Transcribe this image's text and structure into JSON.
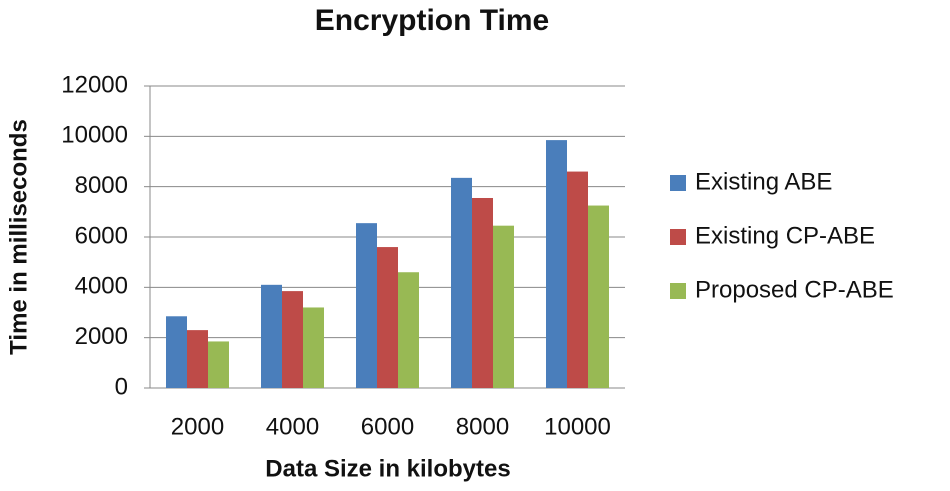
{
  "chart_data": {
    "type": "bar",
    "title": "Encryption Time",
    "x_label": "Data Size in kilobytes",
    "y_label": "Time in milliseconds",
    "categories": [
      "2000",
      "4000",
      "6000",
      "8000",
      "10000"
    ],
    "series": [
      {
        "name": "Existing ABE",
        "color": "#4a7ebb",
        "values": [
          2850,
          4100,
          6550,
          8350,
          9850
        ]
      },
      {
        "name": "Existing CP-ABE",
        "color": "#be4b48",
        "values": [
          2300,
          3850,
          5600,
          7550,
          8600
        ]
      },
      {
        "name": "Proposed CP-ABE",
        "color": "#98b954",
        "values": [
          1850,
          3200,
          4600,
          6450,
          7250
        ]
      }
    ],
    "ylim": [
      0,
      12000
    ],
    "yticks": [
      0,
      2000,
      4000,
      6000,
      8000,
      10000,
      12000
    ],
    "grid": true,
    "legend": "right"
  }
}
